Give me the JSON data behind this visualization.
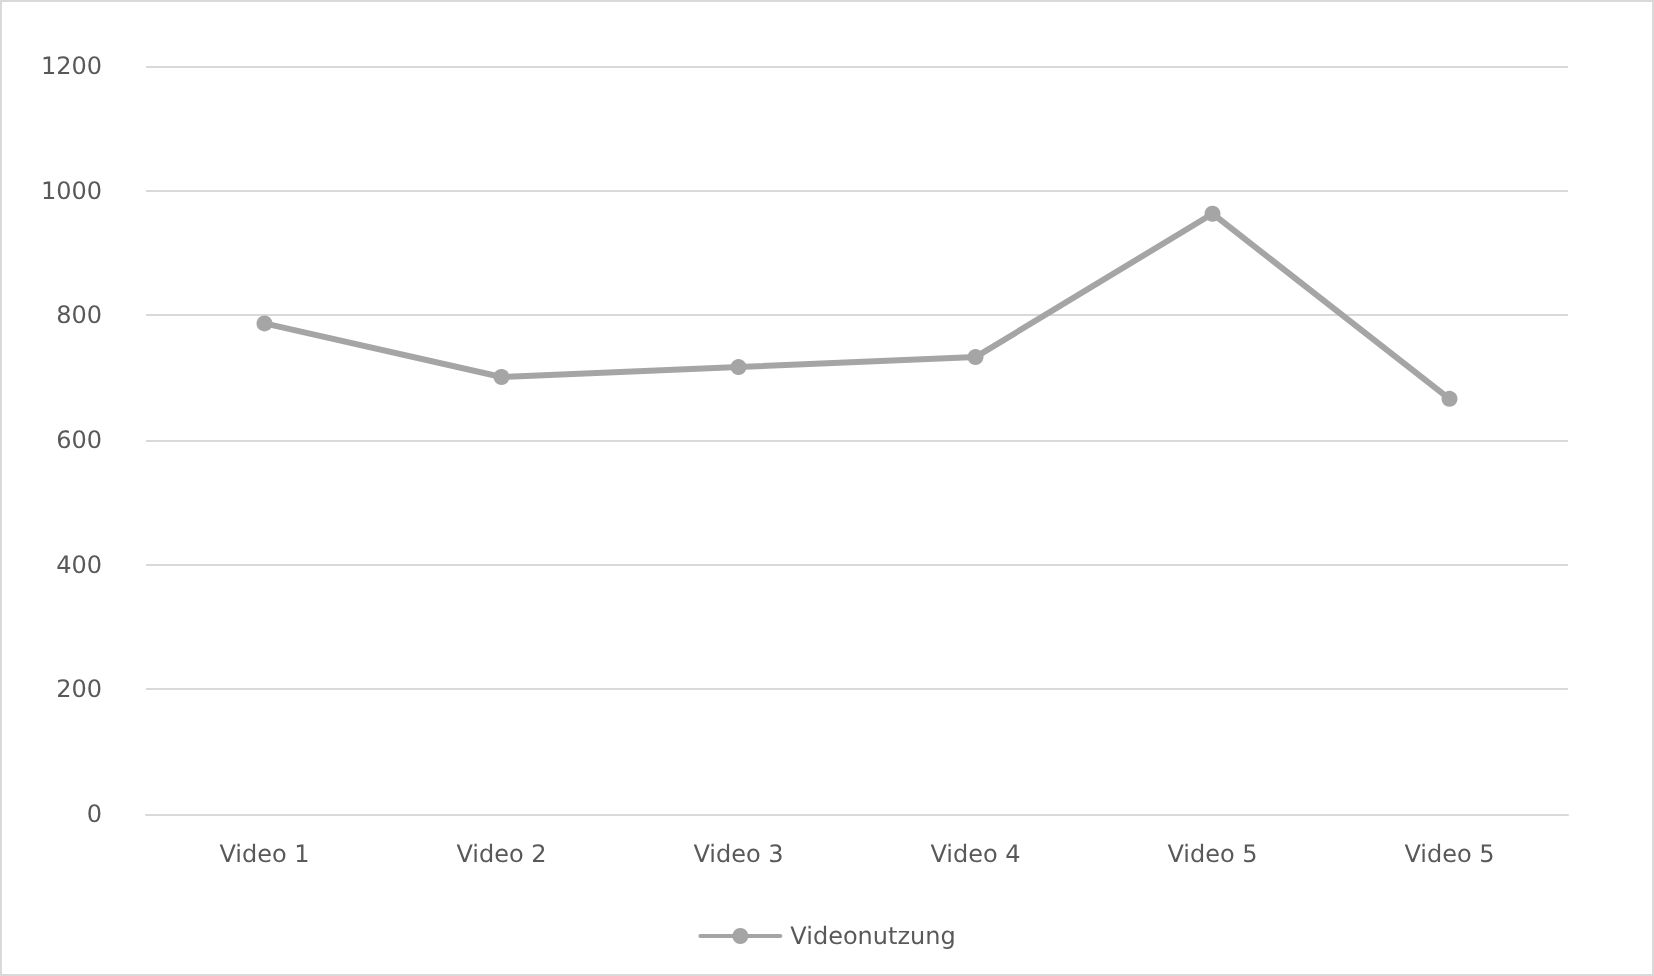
{
  "chart_data": {
    "type": "line",
    "categories": [
      "Video 1",
      "Video 2",
      "Video 3",
      "Video 4",
      "Video 5",
      "Video 5"
    ],
    "series": [
      {
        "name": "Videonutzung",
        "color": "#a5a5a5",
        "values": [
          787,
          701,
          717,
          733,
          963,
          666
        ]
      }
    ],
    "ylim": [
      0,
      1200
    ],
    "yticks": [
      0,
      200,
      400,
      600,
      800,
      1000,
      1200
    ],
    "grid": "y",
    "legend": "bottom",
    "marker": "circle",
    "line_style": "solid"
  }
}
